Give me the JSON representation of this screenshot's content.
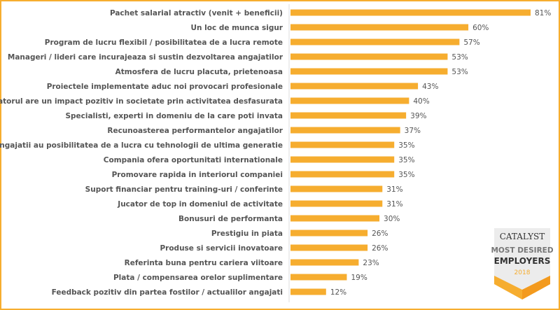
{
  "chart_data": {
    "type": "bar",
    "orientation": "horizontal",
    "categories": [
      "Pachet salarial atractiv (venit + beneficii)",
      "Un loc de munca sigur",
      "Program de lucru flexibil / posibilitatea de a lucra remote",
      "Manageri / lideri care incurajeaza si sustin dezvoltarea angajatilor",
      "Atmosfera de lucru placuta, prietenoasa",
      "Proiectele implementate aduc noi provocari profesionale",
      "Angajatorul are un impact pozitiv in societate prin activitatea desfasurata",
      "Specialisti, experti in domeniu de la care poti invata",
      "Recunoasterea performantelor angajatilor",
      "Angajatii au posibilitatea de a lucra cu tehnologii de ultima generatie",
      "Compania ofera oportunitati internationale",
      "Promovare rapida in interiorul companiei",
      "Suport financiar pentru training-uri / conferinte",
      "Jucator de top in domeniul de activitate",
      "Bonusuri de performanta",
      "Prestigiu in piata",
      "Produse si servicii inovatoare",
      "Referinta buna pentru cariera viitoare",
      "Plata / compensarea orelor suplimentare",
      "Feedback pozitiv din partea fostilor / actualilor angajati"
    ],
    "values": [
      81,
      60,
      57,
      53,
      53,
      43,
      40,
      39,
      37,
      35,
      35,
      35,
      31,
      31,
      30,
      26,
      26,
      23,
      19,
      12
    ],
    "value_suffix": "%",
    "xlim": [
      0,
      81
    ],
    "grid": false,
    "legend": "none",
    "colors": {
      "bar": "#f6ad2f",
      "text": "#555555",
      "frame": "#f6ad2f"
    }
  },
  "badge": {
    "brand": "CATALYST",
    "line1": "MOST DESIRED",
    "line2": "EMPLOYERS",
    "year": "2018"
  }
}
